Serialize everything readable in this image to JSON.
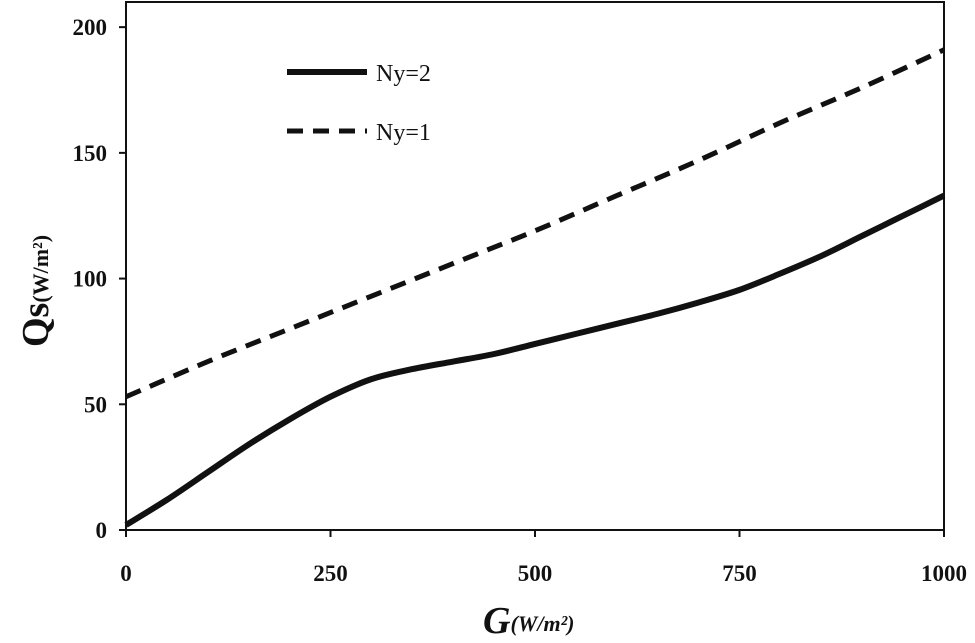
{
  "chart_data": {
    "type": "line",
    "title": "",
    "xlabel": {
      "main": "G",
      "unit": "(W/m²)"
    },
    "ylabel": {
      "main": "Qs",
      "unit": "(W/m²)"
    },
    "xlim": [
      0,
      1000
    ],
    "ylim": [
      0,
      210
    ],
    "xticks": [
      0,
      250,
      500,
      750,
      1000
    ],
    "yticks": [
      0,
      50,
      100,
      150,
      200
    ],
    "grid": false,
    "legend_position": "top-left",
    "series": [
      {
        "name": "Ny=2",
        "style": "solid",
        "color": "#111111",
        "x": [
          0,
          50,
          100,
          150,
          200,
          250,
          300,
          350,
          400,
          450,
          500,
          550,
          600,
          650,
          700,
          750,
          800,
          850,
          900,
          950,
          1000
        ],
        "y": [
          2,
          12,
          23,
          34,
          44,
          53,
          60,
          64,
          67,
          70,
          74,
          78,
          82,
          86,
          90.5,
          95.5,
          102,
          109,
          117,
          125,
          133
        ]
      },
      {
        "name": "Ny=1",
        "style": "dashed",
        "color": "#111111",
        "x": [
          0,
          100,
          200,
          300,
          400,
          500,
          600,
          700,
          800,
          900,
          1000
        ],
        "y": [
          53,
          67,
          80,
          93,
          106,
          119,
          133,
          147,
          162,
          176,
          191
        ]
      }
    ]
  }
}
